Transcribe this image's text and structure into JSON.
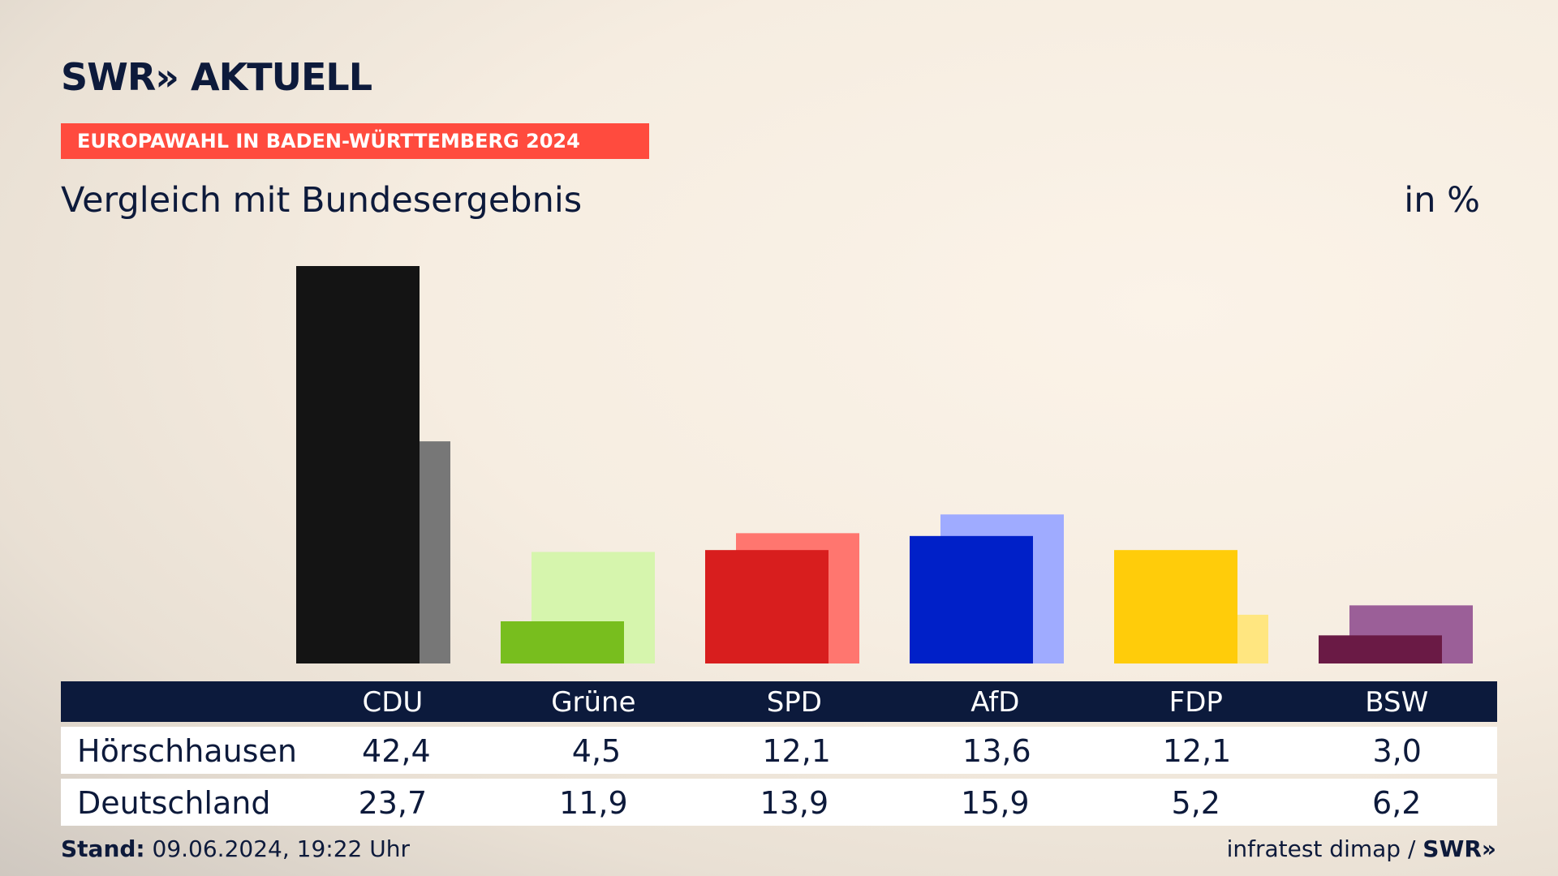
{
  "header": {
    "logo": "SWR» AKTUELL",
    "tag": "EUROPAWAHL IN BADEN-WÜRTTEMBERG 2024",
    "subtitle": "Vergleich mit Bundesergebnis",
    "unit": "in %"
  },
  "chart_data": {
    "type": "bar",
    "categories": [
      "CDU",
      "Grüne",
      "SPD",
      "AfD",
      "FDP",
      "BSW"
    ],
    "series": [
      {
        "name": "Hörschhausen",
        "values": [
          42.4,
          4.5,
          12.1,
          13.6,
          12.1,
          3.0
        ]
      },
      {
        "name": "Deutschland",
        "values": [
          23.7,
          11.9,
          13.9,
          15.9,
          5.2,
          6.2
        ]
      }
    ],
    "colors_primary": [
      "#141414",
      "#78be1e",
      "#d81e1e",
      "#0020c8",
      "#ffcc0a",
      "#6a1a45"
    ],
    "colors_secondary": [
      "#777777",
      "#d6f5ad",
      "#ff766f",
      "#9fabff",
      "#ffe680",
      "#9b5f98"
    ],
    "ylim": [
      0,
      42.4
    ]
  },
  "table": {
    "headers": [
      "CDU",
      "Grüne",
      "SPD",
      "AfD",
      "FDP",
      "BSW"
    ],
    "rows": [
      {
        "label": "Hörschhausen",
        "values": [
          "42,4",
          "4,5",
          "12,1",
          "13,6",
          "12,1",
          "3,0"
        ]
      },
      {
        "label": "Deutschland",
        "values": [
          "23,7",
          "11,9",
          "13,9",
          "15,9",
          "5,2",
          "6,2"
        ]
      }
    ]
  },
  "footer": {
    "stand_label": "Stand:",
    "stand_value": " 09.06.2024, 19:22 Uhr",
    "source": "infratest dimap / ",
    "brand": "SWR»"
  }
}
